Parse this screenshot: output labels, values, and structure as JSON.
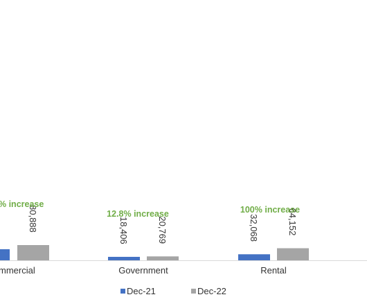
{
  "chart_data": {
    "type": "bar",
    "categories": [
      "Commercial",
      "Government",
      "Rental"
    ],
    "category_labels_visible": [
      "mmercial",
      "Government",
      "Rental"
    ],
    "series": [
      {
        "name": "Dec-21",
        "color": "#4472c4",
        "values": [
          null,
          18406,
          32068
        ]
      },
      {
        "name": "Dec-22",
        "color": "#a5a5a5",
        "values": [
          80888,
          20769,
          64152
        ]
      }
    ],
    "data_labels": [
      {
        "category": "Government",
        "series": "Dec-21",
        "text": "18,406"
      },
      {
        "category": "Rental",
        "series": "Dec-21",
        "text": "32,068"
      },
      {
        "category": "Commercial",
        "series": "Dec-22",
        "text": "80,888"
      },
      {
        "category": "Government",
        "series": "Dec-22",
        "text": "20,769"
      },
      {
        "category": "Rental",
        "series": "Dec-22",
        "text": "64,152"
      }
    ],
    "annotations": [
      {
        "category": "Commercial",
        "text": "% increase"
      },
      {
        "category": "Government",
        "text": "12.8% increase"
      },
      {
        "category": "Rental",
        "text": "100% increase"
      }
    ],
    "annotation_color": "#70ad47",
    "axis_color": "#d9d9d9",
    "legend": {
      "position": "bottom",
      "items": [
        "Dec-21",
        "Dec-22"
      ]
    },
    "grid": false,
    "title": "",
    "xlabel": "",
    "ylabel": ""
  }
}
